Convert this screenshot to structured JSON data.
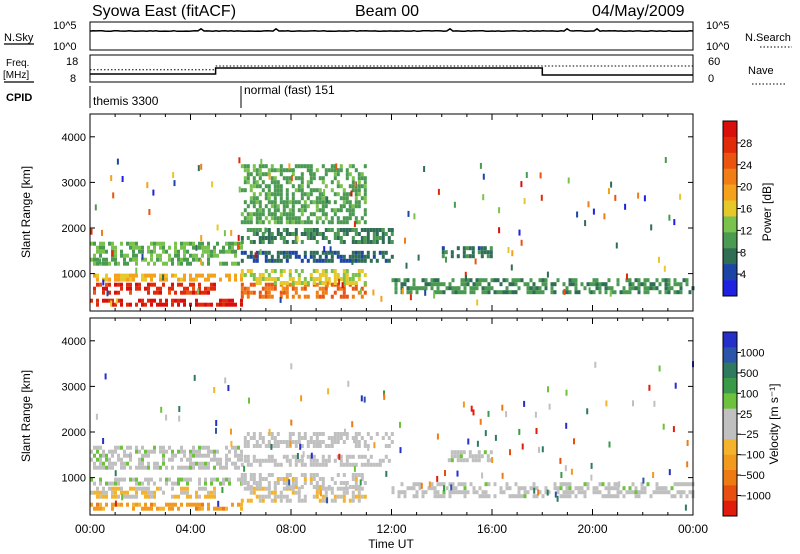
{
  "header": {
    "station": "Syowa East (fitACF)",
    "beam": "Beam 00",
    "date": "04/May/2009"
  },
  "strips": {
    "nsky_label": "N.Sky",
    "nsky_ticks": [
      "10^5",
      "10^0"
    ],
    "nsearch_label": "N.Search",
    "nsearch_ticks": [
      "10^5",
      "10^0"
    ],
    "freq_label_line1": "Freq.",
    "freq_label_line2": "[MHz]",
    "freq_ticks": [
      "18",
      "8"
    ],
    "nave_label": "Nave",
    "nave_ticks": [
      "60",
      "0"
    ],
    "cpid_label": "CPID",
    "cpid_segments": [
      {
        "name": "themis 3300",
        "start_hour": 0,
        "end_hour": 6
      },
      {
        "name": "normal (fast) 151",
        "start_hour": 6,
        "end_hour": 24
      }
    ]
  },
  "axes": {
    "xlabel": "Time UT",
    "x_ticks": [
      "00:00",
      "04:00",
      "08:00",
      "12:00",
      "16:00",
      "20:00",
      "00:00"
    ],
    "ylabel": "Slant Range [km]",
    "y_ticks": [
      "1000",
      "2000",
      "3000",
      "4000"
    ]
  },
  "colorbars": {
    "power": {
      "label": "Power [dB]",
      "ticks": [
        "4",
        "8",
        "12",
        "16",
        "20",
        "24",
        "28"
      ],
      "colors": [
        "#1e22e0",
        "#1c45a6",
        "#2f6e55",
        "#4a9a52",
        "#79c24e",
        "#e6c82a",
        "#f4a11c",
        "#f07d15",
        "#ea5410",
        "#e02a0a",
        "#d80f0a"
      ]
    },
    "velocity": {
      "label": "Velocity [m s⁻¹]",
      "ticks": [
        "1000",
        "500",
        "100",
        "25",
        "−25",
        "−100",
        "−500",
        "−1000"
      ],
      "colors": [
        "#2430c8",
        "#2b55a8",
        "#2f7a5e",
        "#3a9a48",
        "#6cc23c",
        "#c0c0c0",
        "#c0c0c0",
        "#f4b32a",
        "#f29a1e",
        "#ee7a14",
        "#e84e10",
        "#e01c0a"
      ]
    }
  },
  "chart_data": [
    {
      "type": "line",
      "title": "N.Sky / N.Search",
      "x_hours": [
        0,
        0.5,
        1,
        2,
        3,
        4,
        5,
        6,
        7,
        8,
        9,
        10,
        11,
        12,
        13,
        14,
        15,
        16,
        17,
        18,
        19,
        20,
        21,
        22,
        23,
        24
      ],
      "series": [
        {
          "name": "N.Sky",
          "values": [
            5000,
            5000,
            5000,
            5000,
            5000,
            5000,
            5000,
            5000,
            5000,
            5000,
            5000,
            5000,
            5000,
            5000,
            5000,
            5000,
            5000,
            5000,
            5000,
            5000,
            5000,
            5000,
            5000,
            5000,
            5000,
            5000
          ]
        }
      ],
      "y_ticks": [
        "10^0",
        "10^5"
      ]
    },
    {
      "type": "line",
      "title": "Freq. / Nave",
      "series": [
        {
          "name": "Freq.",
          "points": [
            [
              0,
              10.8
            ],
            [
              5,
              10.8
            ],
            [
              5,
              13.2
            ],
            [
              18,
              13.2
            ],
            [
              18,
              10.4
            ],
            [
              24,
              10.4
            ]
          ]
        },
        {
          "name": "Nave",
          "points": [
            [
              0,
              27
            ],
            [
              5,
              27
            ],
            [
              5,
              36
            ],
            [
              24,
              36
            ]
          ]
        }
      ],
      "ylim_freq": [
        8,
        18
      ],
      "ylim_nave": [
        0,
        60
      ]
    },
    {
      "type": "heatmap",
      "title": "Power [dB]",
      "xlim_hours": [
        0,
        24
      ],
      "ylim_km": [
        180,
        4500
      ],
      "zlim": [
        0,
        30
      ],
      "bands": [
        {
          "t0": 0,
          "t1": 6,
          "r0": 1250,
          "r1": 1700,
          "level": 11
        },
        {
          "t0": 0,
          "t1": 6,
          "r0": 850,
          "r1": 1000,
          "level": 17
        },
        {
          "t0": 0,
          "t1": 5,
          "r0": 550,
          "r1": 800,
          "level": 26
        },
        {
          "t0": 0,
          "t1": 6,
          "r0": 300,
          "r1": 450,
          "level": 28
        },
        {
          "t0": 6,
          "t1": 11,
          "r0": 450,
          "r1": 800,
          "level": 22
        },
        {
          "t0": 6,
          "t1": 11,
          "r0": 800,
          "r1": 1100,
          "level": 14
        },
        {
          "t0": 6,
          "t1": 12,
          "r0": 1300,
          "r1": 1500,
          "level": 6
        },
        {
          "t0": 6,
          "t1": 12,
          "r0": 1650,
          "r1": 2000,
          "level": 8
        },
        {
          "t0": 6,
          "t1": 11,
          "r0": 2100,
          "r1": 3400,
          "level": 10
        },
        {
          "t0": 12,
          "t1": 24,
          "r0": 600,
          "r1": 900,
          "level": 9
        },
        {
          "t0": 14,
          "t1": 16,
          "r0": 1400,
          "r1": 1600,
          "level": 7
        }
      ]
    },
    {
      "type": "heatmap",
      "title": "Velocity [m s⁻¹]",
      "xlim_hours": [
        0,
        24
      ],
      "ylim_km": [
        180,
        4500
      ],
      "zlim": [
        -1000,
        1000
      ],
      "bands": [
        {
          "t0": 0,
          "t1": 6,
          "r0": 1250,
          "r1": 1700,
          "level": 80
        },
        {
          "t0": 0,
          "t1": 6,
          "r0": 850,
          "r1": 1000,
          "level": 120
        },
        {
          "t0": 0,
          "t1": 5,
          "r0": 550,
          "r1": 800,
          "level": -150
        },
        {
          "t0": 0,
          "t1": 6,
          "r0": 300,
          "r1": 450,
          "level": -400
        },
        {
          "t0": 6,
          "t1": 11,
          "r0": 450,
          "r1": 800,
          "level": -120
        },
        {
          "t0": 6,
          "t1": 11,
          "r0": 800,
          "r1": 1100,
          "level": -80
        },
        {
          "t0": 6,
          "t1": 12,
          "r0": 1300,
          "r1": 1500,
          "level": 0
        },
        {
          "t0": 6,
          "t1": 12,
          "r0": 1650,
          "r1": 2000,
          "level": 0
        },
        {
          "t0": 12,
          "t1": 24,
          "r0": 600,
          "r1": 900,
          "level": 60
        },
        {
          "t0": 14,
          "t1": 16,
          "r0": 1400,
          "r1": 1600,
          "level": 70
        }
      ]
    }
  ]
}
